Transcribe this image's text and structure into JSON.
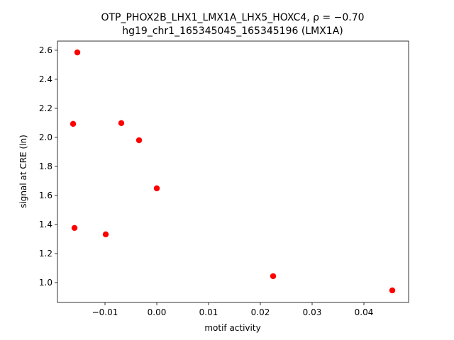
{
  "chart_data": {
    "type": "scatter",
    "title": "OTP_PHOX2B_LHX1_LMX1A_LHX5_HOXC4, ρ = −0.70",
    "subtitle": "hg19_chr1_165345045_165345196 (LMX1A)",
    "x_label": "motif activity",
    "y_label": "signal at CRE (ln)",
    "color": "#ff0000",
    "x": [
      -0.01534,
      -0.01616,
      -0.00685,
      -0.00342,
      0.0,
      -0.01589,
      -0.00986,
      0.02247,
      0.04548
    ],
    "values": [
      2.585,
      2.093,
      2.098,
      1.98,
      1.649,
      1.376,
      1.332,
      1.044,
      0.946
    ],
    "xlim": [
      -0.01918,
      0.04863
    ],
    "ylim": [
      0.863,
      2.663
    ],
    "xticks": [
      {
        "value": -0.01,
        "label": "−0.01"
      },
      {
        "value": 0,
        "label": "0.00"
      },
      0.01,
      0.02,
      0.03,
      0.04
    ],
    "yticks": [
      {
        "value": 1,
        "label": "1.0"
      },
      1.2,
      1.4,
      1.6,
      1.8,
      {
        "value": 2,
        "label": "2.0"
      },
      2.2,
      2.4,
      2.6
    ],
    "grid": false
  }
}
